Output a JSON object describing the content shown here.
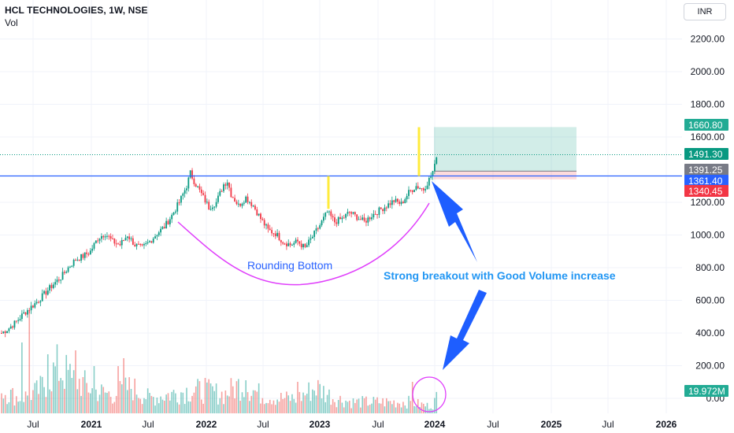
{
  "header": {
    "symbol_line": "HCL TECHNOLOGIES, 1W, NSE",
    "indicator": "Vol"
  },
  "currency_button": "INR",
  "chart_data": {
    "type": "candlestick",
    "price_axis": {
      "ticks": [
        "2200.00",
        "2000.00",
        "1800.00",
        "1600.00",
        "1200.00",
        "1000.00",
        "800.00",
        "600.00",
        "400.00",
        "200.00",
        "0.00"
      ]
    },
    "time_axis": {
      "ticks": [
        "Jul",
        "2021",
        "Jul",
        "2022",
        "Jul",
        "2023",
        "Jul",
        "2024",
        "Jul",
        "2025",
        "Jul",
        "2026"
      ]
    },
    "price_labels": [
      {
        "text": "1660.80",
        "color": "#22ab94"
      },
      {
        "text": "1491.30",
        "color": "#089981"
      },
      {
        "text": "1391.25",
        "color": "#787b86"
      },
      {
        "text": "1361.40",
        "color": "#2962ff"
      },
      {
        "text": "1340.45",
        "color": "#f23645"
      },
      {
        "text": "19.972M",
        "color": "#22ab94"
      }
    ],
    "levels": {
      "resistance": 1361.4,
      "last": 1491.3,
      "target": 1660.8,
      "entry": 1391.25,
      "stop": 1340.45
    },
    "annotations": {
      "pattern": "Rounding Bottom",
      "breakout": "Strong breakout with Good Volume increase"
    },
    "price_path": [
      [
        0,
        400
      ],
      [
        4,
        430
      ],
      [
        8,
        470
      ],
      [
        12,
        520
      ],
      [
        16,
        560
      ],
      [
        20,
        600
      ],
      [
        24,
        650
      ],
      [
        28,
        700
      ],
      [
        32,
        740
      ],
      [
        36,
        800
      ],
      [
        40,
        850
      ],
      [
        44,
        870
      ],
      [
        48,
        900
      ],
      [
        52,
        980
      ],
      [
        56,
        1010
      ],
      [
        60,
        960
      ],
      [
        64,
        940
      ],
      [
        68,
        1000
      ],
      [
        72,
        940
      ],
      [
        76,
        920
      ],
      [
        80,
        960
      ],
      [
        84,
        1010
      ],
      [
        88,
        1050
      ],
      [
        92,
        1120
      ],
      [
        96,
        1200
      ],
      [
        100,
        1300
      ],
      [
        102,
        1380
      ],
      [
        104,
        1330
      ],
      [
        108,
        1250
      ],
      [
        112,
        1170
      ],
      [
        116,
        1200
      ],
      [
        120,
        1310
      ],
      [
        122,
        1330
      ],
      [
        124,
        1250
      ],
      [
        128,
        1180
      ],
      [
        132,
        1230
      ],
      [
        136,
        1180
      ],
      [
        140,
        1100
      ],
      [
        144,
        1030
      ],
      [
        148,
        1010
      ],
      [
        152,
        960
      ],
      [
        156,
        940
      ],
      [
        160,
        960
      ],
      [
        164,
        920
      ],
      [
        168,
        990
      ],
      [
        172,
        1060
      ],
      [
        176,
        1140
      ],
      [
        180,
        1080
      ],
      [
        184,
        1100
      ],
      [
        188,
        1140
      ],
      [
        192,
        1110
      ],
      [
        196,
        1080
      ],
      [
        200,
        1120
      ],
      [
        204,
        1150
      ],
      [
        208,
        1180
      ],
      [
        212,
        1210
      ],
      [
        216,
        1190
      ],
      [
        220,
        1260
      ],
      [
        224,
        1300
      ],
      [
        228,
        1280
      ],
      [
        230,
        1320
      ],
      [
        232,
        1360
      ],
      [
        234,
        1420
      ],
      [
        235,
        1491
      ]
    ],
    "volume_path": [
      [
        0,
        30
      ],
      [
        10,
        20
      ],
      [
        20,
        30
      ],
      [
        30,
        60
      ],
      [
        40,
        45
      ],
      [
        50,
        30
      ],
      [
        60,
        25
      ],
      [
        70,
        35
      ],
      [
        80,
        20
      ],
      [
        90,
        25
      ],
      [
        100,
        30
      ],
      [
        110,
        30
      ],
      [
        120,
        25
      ],
      [
        130,
        40
      ],
      [
        140,
        25
      ],
      [
        150,
        20
      ],
      [
        160,
        20
      ],
      [
        170,
        35
      ],
      [
        180,
        20
      ],
      [
        190,
        15
      ],
      [
        200,
        15
      ],
      [
        210,
        15
      ],
      [
        220,
        15
      ],
      [
        230,
        10
      ],
      [
        233,
        12
      ],
      [
        235,
        20
      ]
    ],
    "volume_spikes": [
      [
        11,
        90
      ],
      [
        15,
        130
      ],
      [
        25,
        75
      ],
      [
        38,
        45
      ],
      [
        40,
        80
      ],
      [
        50,
        60
      ],
      [
        63,
        60
      ],
      [
        66,
        70
      ],
      [
        110,
        45
      ],
      [
        132,
        42
      ],
      [
        160,
        40
      ],
      [
        222,
        40
      ]
    ]
  }
}
